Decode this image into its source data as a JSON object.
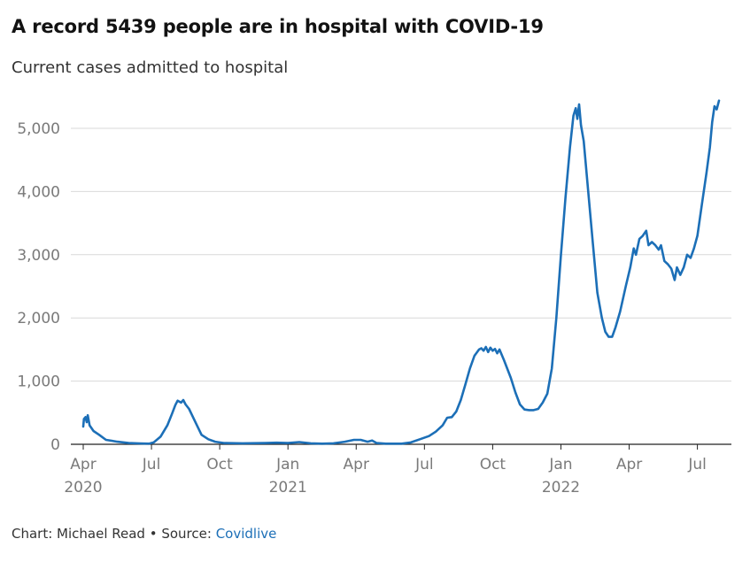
{
  "header": {
    "title": "A record 5439 people are in hospital with COVID-19",
    "subtitle": "Current cases admitted to hospital"
  },
  "footer": {
    "credit": "Chart: Michael Read",
    "separator": " • ",
    "source_label": "Source: ",
    "source_name": "Covidlive"
  },
  "colors": {
    "line": "#1c6fb7",
    "grid": "#d9d9d9",
    "axis": "#222222",
    "tick": "#7a7a7a",
    "link": "#1c6fb7"
  },
  "chart_data": {
    "type": "line",
    "title": "A record 5439 people are in hospital with COVID-19",
    "subtitle": "Current cases admitted to hospital",
    "xlabel": "",
    "ylabel": "",
    "ylim": [
      0,
      5500
    ],
    "xlim_months": [
      0,
      28.2
    ],
    "x_unit": "months since 1 Apr 2020",
    "grid": true,
    "legend": "none",
    "y_ticks": [
      {
        "value": 0,
        "label": "0"
      },
      {
        "value": 1000,
        "label": "1,000"
      },
      {
        "value": 2000,
        "label": "2,000"
      },
      {
        "value": 3000,
        "label": "3,000"
      },
      {
        "value": 4000,
        "label": "4,000"
      },
      {
        "value": 5000,
        "label": "5,000"
      }
    ],
    "x_ticks": [
      {
        "month": 0,
        "label": "Apr",
        "year": "2020"
      },
      {
        "month": 3,
        "label": "Jul",
        "year": ""
      },
      {
        "month": 6,
        "label": "Oct",
        "year": ""
      },
      {
        "month": 9,
        "label": "Jan",
        "year": "2021"
      },
      {
        "month": 12,
        "label": "Apr",
        "year": ""
      },
      {
        "month": 15,
        "label": "Jul",
        "year": ""
      },
      {
        "month": 18,
        "label": "Oct",
        "year": ""
      },
      {
        "month": 21,
        "label": "Jan",
        "year": "2022"
      },
      {
        "month": 24,
        "label": "Apr",
        "year": ""
      },
      {
        "month": 27,
        "label": "Jul",
        "year": ""
      }
    ],
    "series": [
      {
        "name": "Current cases admitted to hospital",
        "points": [
          [
            0,
            280
          ],
          [
            0.03,
            400
          ],
          [
            0.1,
            430
          ],
          [
            0.15,
            350
          ],
          [
            0.2,
            460
          ],
          [
            0.28,
            300
          ],
          [
            0.45,
            210
          ],
          [
            0.7,
            150
          ],
          [
            1,
            70
          ],
          [
            1.5,
            40
          ],
          [
            2,
            20
          ],
          [
            2.5,
            12
          ],
          [
            2.9,
            10
          ],
          [
            3.1,
            30
          ],
          [
            3.4,
            120
          ],
          [
            3.7,
            300
          ],
          [
            3.9,
            480
          ],
          [
            4.05,
            620
          ],
          [
            4.15,
            690
          ],
          [
            4.3,
            660
          ],
          [
            4.4,
            700
          ],
          [
            4.5,
            630
          ],
          [
            4.65,
            560
          ],
          [
            4.8,
            450
          ],
          [
            5,
            300
          ],
          [
            5.2,
            150
          ],
          [
            5.5,
            80
          ],
          [
            5.8,
            40
          ],
          [
            6.2,
            20
          ],
          [
            7,
            15
          ],
          [
            8,
            20
          ],
          [
            8.5,
            25
          ],
          [
            9,
            20
          ],
          [
            9.5,
            35
          ],
          [
            10,
            15
          ],
          [
            10.5,
            10
          ],
          [
            11,
            15
          ],
          [
            11.5,
            40
          ],
          [
            11.9,
            70
          ],
          [
            12.2,
            70
          ],
          [
            12.5,
            40
          ],
          [
            12.7,
            60
          ],
          [
            12.9,
            20
          ],
          [
            13.3,
            10
          ],
          [
            14,
            10
          ],
          [
            14.4,
            30
          ],
          [
            14.8,
            80
          ],
          [
            15.2,
            130
          ],
          [
            15.5,
            200
          ],
          [
            15.8,
            300
          ],
          [
            16,
            420
          ],
          [
            16.2,
            430
          ],
          [
            16.4,
            520
          ],
          [
            16.6,
            700
          ],
          [
            16.8,
            950
          ],
          [
            17,
            1200
          ],
          [
            17.2,
            1400
          ],
          [
            17.4,
            1500
          ],
          [
            17.5,
            1520
          ],
          [
            17.6,
            1480
          ],
          [
            17.7,
            1540
          ],
          [
            17.8,
            1460
          ],
          [
            17.9,
            1530
          ],
          [
            18.0,
            1480
          ],
          [
            18.1,
            1510
          ],
          [
            18.2,
            1440
          ],
          [
            18.3,
            1500
          ],
          [
            18.5,
            1330
          ],
          [
            18.8,
            1050
          ],
          [
            19.0,
            820
          ],
          [
            19.2,
            630
          ],
          [
            19.4,
            550
          ],
          [
            19.6,
            540
          ],
          [
            19.8,
            540
          ],
          [
            20.0,
            560
          ],
          [
            20.2,
            660
          ],
          [
            20.4,
            800
          ],
          [
            20.6,
            1200
          ],
          [
            20.8,
            2000
          ],
          [
            21.0,
            3000
          ],
          [
            21.2,
            3900
          ],
          [
            21.4,
            4700
          ],
          [
            21.55,
            5200
          ],
          [
            21.65,
            5320
          ],
          [
            21.72,
            5150
          ],
          [
            21.8,
            5380
          ],
          [
            21.88,
            5050
          ],
          [
            22.0,
            4800
          ],
          [
            22.2,
            4000
          ],
          [
            22.4,
            3200
          ],
          [
            22.6,
            2400
          ],
          [
            22.8,
            2000
          ],
          [
            22.95,
            1780
          ],
          [
            23.1,
            1700
          ],
          [
            23.25,
            1700
          ],
          [
            23.4,
            1850
          ],
          [
            23.6,
            2100
          ],
          [
            23.85,
            2500
          ],
          [
            24.05,
            2800
          ],
          [
            24.2,
            3100
          ],
          [
            24.3,
            3000
          ],
          [
            24.45,
            3250
          ],
          [
            24.6,
            3300
          ],
          [
            24.75,
            3380
          ],
          [
            24.85,
            3150
          ],
          [
            25.0,
            3200
          ],
          [
            25.15,
            3150
          ],
          [
            25.3,
            3080
          ],
          [
            25.4,
            3150
          ],
          [
            25.55,
            2900
          ],
          [
            25.7,
            2850
          ],
          [
            25.85,
            2780
          ],
          [
            26.0,
            2600
          ],
          [
            26.1,
            2800
          ],
          [
            26.25,
            2680
          ],
          [
            26.4,
            2800
          ],
          [
            26.55,
            3000
          ],
          [
            26.7,
            2950
          ],
          [
            26.85,
            3100
          ],
          [
            27.0,
            3300
          ],
          [
            27.2,
            3800
          ],
          [
            27.4,
            4300
          ],
          [
            27.55,
            4700
          ],
          [
            27.65,
            5100
          ],
          [
            27.75,
            5350
          ],
          [
            27.85,
            5300
          ],
          [
            27.95,
            5439
          ]
        ]
      }
    ]
  }
}
